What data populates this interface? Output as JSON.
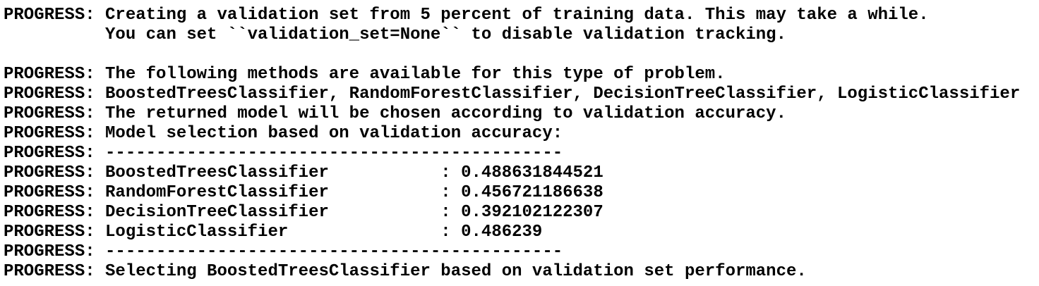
{
  "theme": {
    "background_color": "#ffffff",
    "text_color": "#000000"
  },
  "console": {
    "prefix": "PROGRESS:",
    "lines": [
      "PROGRESS: Creating a validation set from 5 percent of training data. This may take a while.",
      "          You can set ``validation_set=None`` to disable validation tracking.",
      "",
      "PROGRESS: The following methods are available for this type of problem.",
      "PROGRESS: BoostedTreesClassifier, RandomForestClassifier, DecisionTreeClassifier, LogisticClassifier",
      "PROGRESS: The returned model will be chosen according to validation accuracy.",
      "PROGRESS: Model selection based on validation accuracy:",
      "PROGRESS: ---------------------------------------------",
      "PROGRESS: BoostedTreesClassifier           : 0.488631844521",
      "PROGRESS: RandomForestClassifier           : 0.456721186638",
      "PROGRESS: DecisionTreeClassifier           : 0.392102122307",
      "PROGRESS: LogisticClassifier               : 0.486239",
      "PROGRESS: ---------------------------------------------",
      "PROGRESS: Selecting BoostedTreesClassifier based on validation set performance."
    ],
    "model_selection": {
      "metric": "validation accuracy",
      "validation_set_percent": "5",
      "models": [
        {
          "name": "BoostedTreesClassifier",
          "accuracy": "0.488631844521"
        },
        {
          "name": "RandomForestClassifier",
          "accuracy": "0.456721186638"
        },
        {
          "name": "DecisionTreeClassifier",
          "accuracy": "0.392102122307"
        },
        {
          "name": "LogisticClassifier",
          "accuracy": "0.486239"
        }
      ],
      "selected_model": "BoostedTreesClassifier"
    }
  }
}
